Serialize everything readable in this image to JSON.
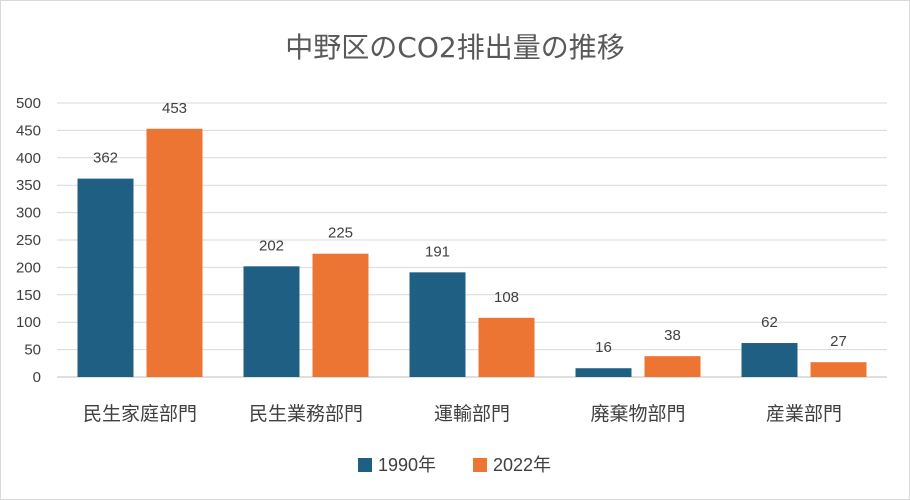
{
  "chart_data": {
    "type": "bar",
    "title": "中野区のCO2排出量の推移",
    "categories": [
      "民生家庭部門",
      "民生業務部門",
      "運輸部門",
      "廃棄物部門",
      "産業部門"
    ],
    "series": [
      {
        "name": "1990年",
        "values": [
          362,
          202,
          191,
          16,
          62
        ],
        "color": "#1f5f84"
      },
      {
        "name": "2022年",
        "values": [
          453,
          225,
          108,
          38,
          27
        ],
        "color": "#ed7534"
      }
    ],
    "ylim": [
      0,
      500
    ],
    "yticks": [
      0,
      50,
      100,
      150,
      200,
      250,
      300,
      350,
      400,
      450,
      500
    ],
    "grid": true,
    "legend": "bottom",
    "xlabel": "",
    "ylabel": ""
  }
}
